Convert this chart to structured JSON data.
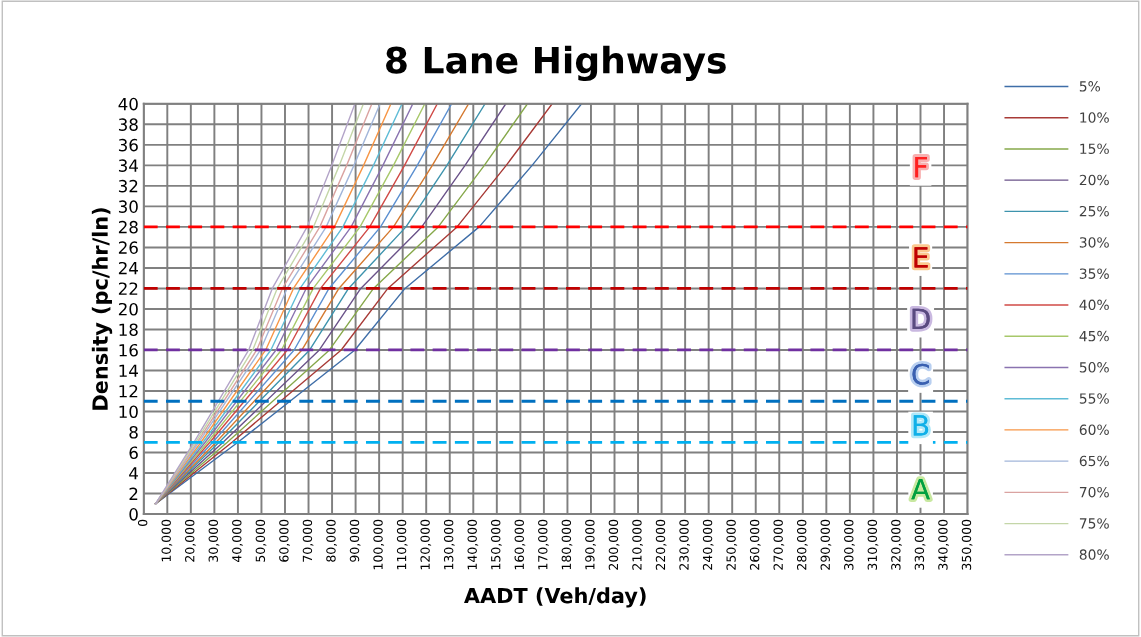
{
  "chart_data": {
    "type": "line",
    "title": "8 Lane Highways",
    "xlabel": "AADT (Veh/day)",
    "ylabel": "Density (pc/hr/ln)",
    "xlim": [
      0,
      350000
    ],
    "xticks": [
      0,
      {
        "value": 10000,
        "label": "10,000"
      },
      {
        "value": 20000,
        "label": "20,000"
      },
      {
        "value": 30000,
        "label": "30,000"
      },
      {
        "value": 40000,
        "label": "40,000"
      },
      {
        "value": 50000,
        "label": "50,000"
      },
      {
        "value": 60000,
        "label": "60,000"
      },
      {
        "value": 70000,
        "label": "70,000"
      },
      {
        "value": 80000,
        "label": "80,000"
      },
      {
        "value": 90000,
        "label": "90,000"
      },
      {
        "value": 100000,
        "label": "100,000"
      },
      {
        "value": 110000,
        "label": "110,000"
      },
      {
        "value": 120000,
        "label": "120,000"
      },
      {
        "value": 130000,
        "label": "130,000"
      },
      {
        "value": 140000,
        "label": "140,000"
      },
      {
        "value": 150000,
        "label": "150,000"
      },
      {
        "value": 160000,
        "label": "160,000"
      },
      {
        "value": 170000,
        "label": "170,000"
      },
      {
        "value": 180000,
        "label": "180,000"
      },
      {
        "value": 190000,
        "label": "190,000"
      },
      {
        "value": 200000,
        "label": "200,000"
      },
      {
        "value": 210000,
        "label": "210,000"
      },
      {
        "value": 220000,
        "label": "220,000"
      },
      {
        "value": 230000,
        "label": "230,000"
      },
      {
        "value": 240000,
        "label": "240,000"
      },
      {
        "value": 250000,
        "label": "250,000"
      },
      {
        "value": 260000,
        "label": "260,000"
      },
      {
        "value": 270000,
        "label": "270,000"
      },
      {
        "value": 280000,
        "label": "280,000"
      },
      {
        "value": 290000,
        "label": "290,000"
      },
      {
        "value": 300000,
        "label": "300,000"
      },
      {
        "value": 310000,
        "label": "310,000"
      },
      {
        "value": 320000,
        "label": "320,000"
      },
      {
        "value": 330000,
        "label": "330,000"
      },
      {
        "value": 340000,
        "label": "340,000"
      },
      {
        "value": 350000,
        "label": "350,000"
      }
    ],
    "ylim": [
      0,
      40
    ],
    "yticks": [
      0,
      2,
      4,
      6,
      8,
      10,
      12,
      14,
      16,
      18,
      20,
      22,
      24,
      26,
      28,
      30,
      32,
      34,
      36,
      38,
      40
    ],
    "grid": true,
    "legend": "right",
    "line_style": "solid",
    "marker": "none",
    "series": [
      {
        "name": "5%",
        "color": "#3f6ea8",
        "x": [
          5000,
          40000,
          89700,
          111000,
          142500,
          165000,
          186000
        ],
        "values": [
          1,
          7,
          16,
          22,
          28,
          34,
          40
        ]
      },
      {
        "name": "10%",
        "color": "#a83a36",
        "x": [
          5000,
          37500,
          83900,
          103700,
          133100,
          154000,
          173500
        ],
        "values": [
          1,
          7,
          16,
          22,
          28,
          34,
          40
        ]
      },
      {
        "name": "15%",
        "color": "#86a84a",
        "x": [
          5000,
          35500,
          78900,
          97600,
          125100,
          144700,
          163000
        ],
        "values": [
          1,
          7,
          16,
          22,
          28,
          34,
          40
        ]
      },
      {
        "name": "20%",
        "color": "#6a5289",
        "x": [
          5000,
          33700,
          74600,
          92200,
          118100,
          136500,
          153800
        ],
        "values": [
          1,
          7,
          16,
          22,
          28,
          34,
          40
        ]
      },
      {
        "name": "25%",
        "color": "#3d93ad",
        "x": [
          5000,
          32000,
          70500,
          87000,
          111400,
          128800,
          145000
        ],
        "values": [
          1,
          7,
          16,
          22,
          28,
          34,
          40
        ]
      },
      {
        "name": "30%",
        "color": "#d5792f",
        "x": [
          5000,
          30700,
          67200,
          82900,
          106100,
          122600,
          138000
        ],
        "values": [
          1,
          7,
          16,
          22,
          28,
          34,
          40
        ]
      },
      {
        "name": "35%",
        "color": "#5b8fd0",
        "x": [
          5000,
          29300,
          63900,
          78700,
          100600,
          116200,
          130800
        ],
        "values": [
          1,
          7,
          16,
          22,
          28,
          34,
          40
        ]
      },
      {
        "name": "40%",
        "color": "#d04a46",
        "x": [
          5000,
          28100,
          61000,
          75100,
          96000,
          110800,
          124700
        ],
        "values": [
          1,
          7,
          16,
          22,
          28,
          34,
          40
        ]
      },
      {
        "name": "45%",
        "color": "#a7c86a",
        "x": [
          5000,
          27100,
          58500,
          72000,
          91900,
          106100,
          119400
        ],
        "values": [
          1,
          7,
          16,
          22,
          28,
          34,
          40
        ]
      },
      {
        "name": "50%",
        "color": "#8a73b0",
        "x": [
          5000,
          26100,
          56200,
          69000,
          88100,
          101600,
          114300
        ],
        "values": [
          1,
          7,
          16,
          22,
          28,
          34,
          40
        ]
      },
      {
        "name": "55%",
        "color": "#5fbcd6",
        "x": [
          5000,
          25200,
          54000,
          66400,
          84600,
          97600,
          109700
        ],
        "values": [
          1,
          7,
          16,
          22,
          28,
          34,
          40
        ]
      },
      {
        "name": "60%",
        "color": "#f79646",
        "x": [
          5000,
          24300,
          51800,
          63600,
          81000,
          93400,
          105000
        ],
        "values": [
          1,
          7,
          16,
          22,
          28,
          34,
          40
        ]
      },
      {
        "name": "65%",
        "color": "#a2b6da",
        "x": [
          5000,
          23400,
          49600,
          60900,
          77500,
          89300,
          100400
        ],
        "values": [
          1,
          7,
          16,
          22,
          28,
          34,
          40
        ]
      },
      {
        "name": "70%",
        "color": "#daa3a1",
        "x": [
          5000,
          22700,
          48000,
          58900,
          74800,
          86200,
          96900
        ],
        "values": [
          1,
          7,
          16,
          22,
          28,
          34,
          40
        ]
      },
      {
        "name": "75%",
        "color": "#c4d6a8",
        "x": [
          5000,
          22000,
          46300,
          56700,
          72100,
          83100,
          93300
        ],
        "values": [
          1,
          7,
          16,
          22,
          28,
          34,
          40
        ]
      },
      {
        "name": "80%",
        "color": "#b3a4c8",
        "x": [
          5000,
          21300,
          44600,
          54600,
          69400,
          79900,
          89700
        ],
        "values": [
          1,
          7,
          16,
          22,
          28,
          34,
          40
        ]
      }
    ],
    "ref_lines": [
      {
        "axis": "y",
        "value": 28,
        "color": "#ff0000",
        "line_style": "dashed"
      },
      {
        "axis": "y",
        "value": 22,
        "color": "#c00000",
        "line_style": "dashed"
      },
      {
        "axis": "y",
        "value": 16,
        "color": "#7030a0",
        "line_style": "dashed"
      },
      {
        "axis": "y",
        "value": 11,
        "color": "#0070c0",
        "line_style": "dashed"
      },
      {
        "axis": "y",
        "value": 7,
        "color": "#00b0f0",
        "line_style": "dashed"
      }
    ],
    "annotations": [
      "F",
      "E",
      "D",
      "C",
      "B",
      "A"
    ]
  }
}
